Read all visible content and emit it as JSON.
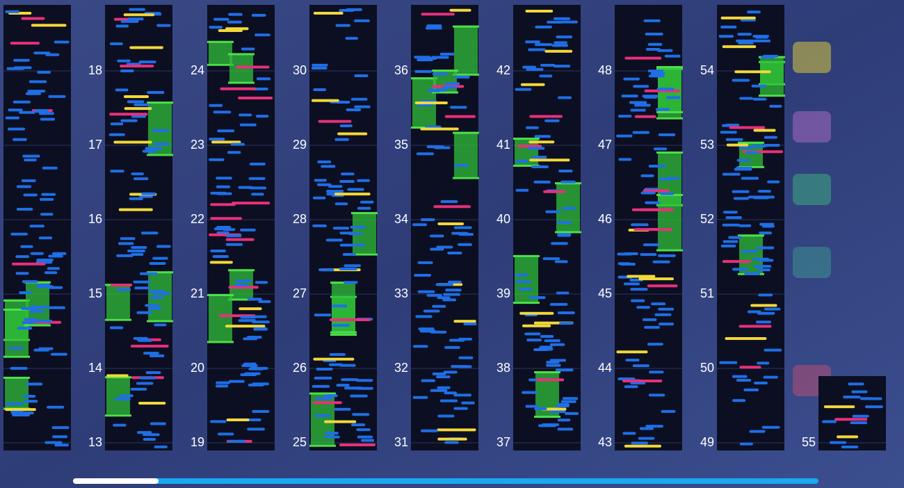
{
  "columns": [
    [
      "13",
      "14",
      "15",
      "16",
      "17",
      "18"
    ],
    [
      "19",
      "20",
      "21",
      "22",
      "23",
      "24"
    ],
    [
      "25",
      "26",
      "27",
      "28",
      "29",
      "30"
    ],
    [
      "31",
      "32",
      "33",
      "34",
      "35",
      "36"
    ],
    [
      "37",
      "38",
      "39",
      "40",
      "41",
      "42"
    ],
    [
      "43",
      "44",
      "45",
      "46",
      "47",
      "48"
    ],
    [
      "49",
      "50",
      "51",
      "52",
      "53",
      "54"
    ],
    [
      "55"
    ]
  ]
}
